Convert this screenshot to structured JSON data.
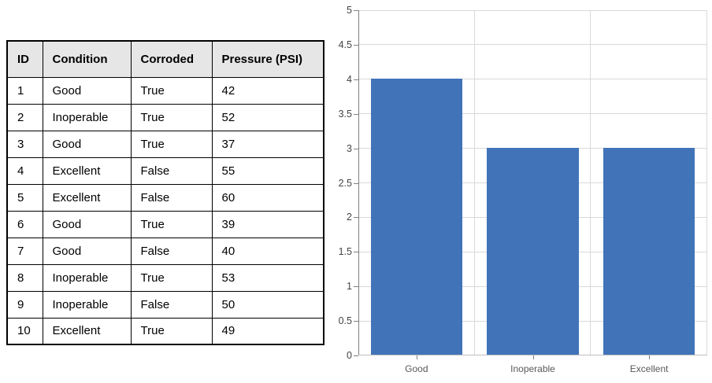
{
  "table": {
    "headers": [
      "ID",
      "Condition",
      "Corroded",
      "Pressure (PSI)"
    ],
    "rows": [
      [
        "1",
        "Good",
        "True",
        "42"
      ],
      [
        "2",
        "Inoperable",
        "True",
        "52"
      ],
      [
        "3",
        "Good",
        "True",
        "37"
      ],
      [
        "4",
        "Excellent",
        "False",
        "55"
      ],
      [
        "5",
        "Excellent",
        "False",
        "60"
      ],
      [
        "6",
        "Good",
        "True",
        "39"
      ],
      [
        "7",
        "Good",
        "False",
        "40"
      ],
      [
        "8",
        "Inoperable",
        "True",
        "53"
      ],
      [
        "9",
        "Inoperable",
        "False",
        "50"
      ],
      [
        "10",
        "Excellent",
        "True",
        "49"
      ]
    ],
    "header_bg": "#E7E6E6",
    "border_color": "#000000"
  },
  "chart_data": {
    "type": "bar",
    "categories": [
      "Good",
      "Inoperable",
      "Excellent"
    ],
    "values": [
      4,
      3,
      3
    ],
    "title": "",
    "xlabel": "",
    "ylabel": "",
    "ylim": [
      0,
      5
    ],
    "ytick_step": 0.5,
    "ytick_labels": [
      "0",
      "0.5",
      "1",
      "1.5",
      "2",
      "2.5",
      "3",
      "3.5",
      "4",
      "4.5",
      "5"
    ],
    "grid": true,
    "legend": false,
    "bar_color": "#4173B9",
    "gridline_color": "#D9D9D9",
    "axis_line_color": "#808080",
    "x_axis_line_color": "#BFBFBF",
    "y_label_color": "#444444",
    "x_label_color": "#595959"
  }
}
